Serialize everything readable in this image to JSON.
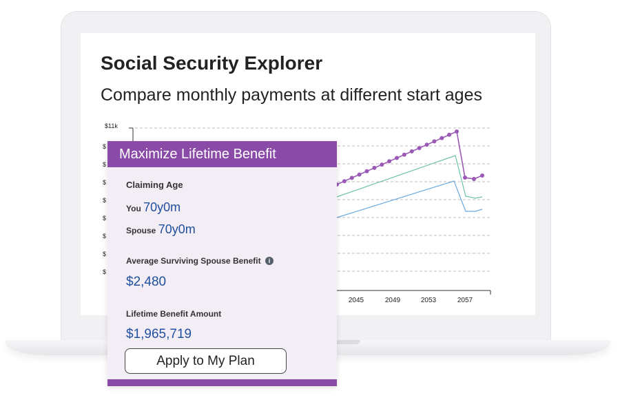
{
  "app": {
    "title": "Social Security Explorer",
    "subtitle": "Compare monthly payments at different start ages"
  },
  "panel": {
    "header": "Maximize Lifetime Benefit",
    "claiming_age_label": "Claiming Age",
    "you_label": "You",
    "you_value": "70y0m",
    "spouse_label": "Spouse",
    "spouse_value": "70y0m",
    "surviving_label": "Average Surviving Spouse Benefit",
    "surviving_value": "$2,480",
    "lifetime_label": "Lifetime Benefit Amount",
    "lifetime_value": "$1,965,719",
    "apply_button": "Apply to My Plan",
    "info_icon": "info-icon"
  },
  "colors": {
    "accent_purple": "#8a4aa8",
    "panel_bg": "#f3edf6",
    "value_blue": "#1f4f9f",
    "series_purple": "#9b59b6",
    "series_green": "#6cc3a0",
    "series_blue": "#6aa9e0"
  },
  "chart_data": {
    "type": "line",
    "y_tick_top": "$11k",
    "x_ticks": [
      "2045",
      "2049",
      "2053",
      "2057"
    ],
    "grid": true
  }
}
